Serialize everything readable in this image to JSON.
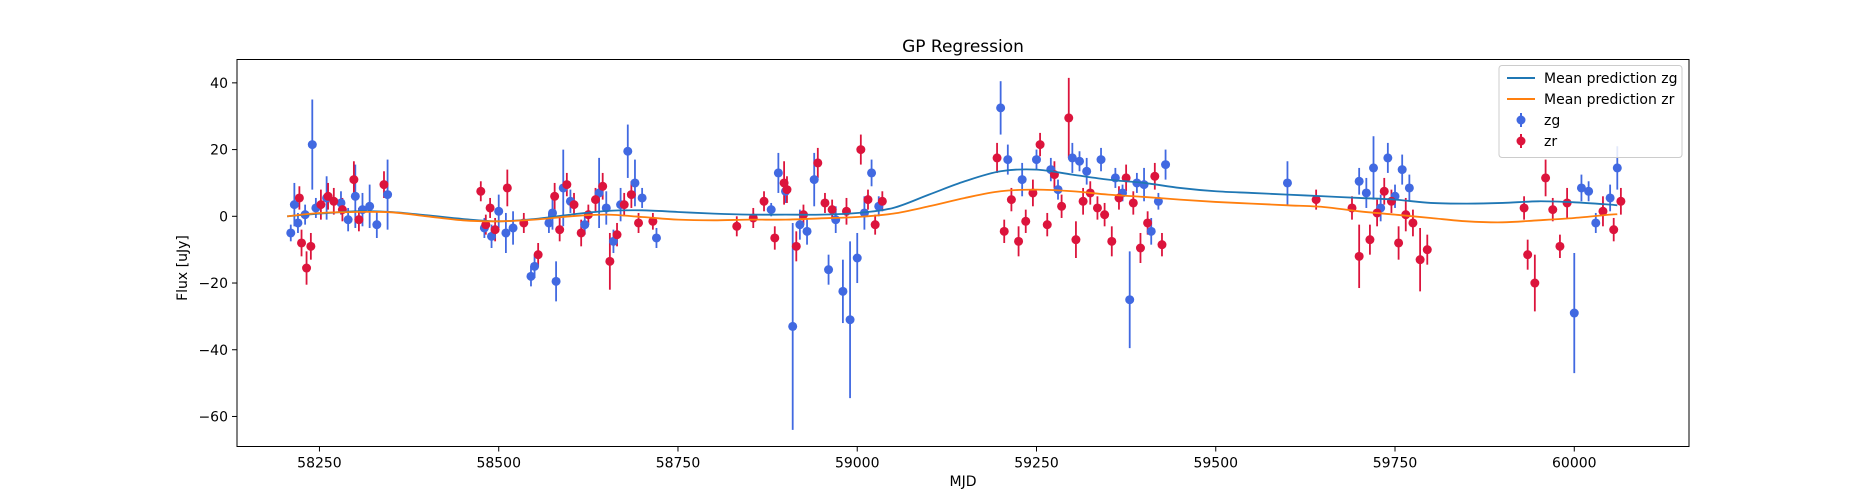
{
  "chart_data": {
    "type": "scatter",
    "title": "GP Regression",
    "xlabel": "MJD",
    "ylabel": "Flux [uJy]",
    "xlim": [
      58135,
      60160
    ],
    "ylim": [
      -69,
      47
    ],
    "xticks": [
      58250,
      58500,
      58750,
      59000,
      59250,
      59500,
      59750,
      60000
    ],
    "yticks": [
      40,
      20,
      0,
      -20,
      -40,
      -60
    ],
    "legend_position": "upper right",
    "grid": false,
    "colors": {
      "mean_zg": "#1f77b4",
      "mean_zr": "#ff7f0e",
      "zg": "#4169e1",
      "zr": "#dc143c"
    },
    "lines": [
      {
        "name": "Mean prediction zg",
        "color": "#1f77b4",
        "x": [
          58205,
          58250,
          58300,
          58350,
          58400,
          58450,
          58500,
          58550,
          58600,
          58650,
          58700,
          58750,
          58800,
          58850,
          58900,
          58950,
          59000,
          59050,
          59100,
          59150,
          59200,
          59250,
          59300,
          59350,
          59400,
          59450,
          59500,
          59550,
          59600,
          59650,
          59700,
          59750,
          59800,
          59850,
          59900,
          59950,
          60000,
          60050,
          60060
        ],
        "y": [
          0,
          0.8,
          1.5,
          1.3,
          0.3,
          -0.8,
          -1.5,
          -0.8,
          0.5,
          1.6,
          1.8,
          1.3,
          0.8,
          0.5,
          0.5,
          0.5,
          1.0,
          2.5,
          6.5,
          10.5,
          13.5,
          14.0,
          12.5,
          11.0,
          10.0,
          8.5,
          7.5,
          7.0,
          6.5,
          6.0,
          5.5,
          5.0,
          4.0,
          3.8,
          4.0,
          4.5,
          4.2,
          3.5,
          3.3
        ]
      },
      {
        "name": "Mean prediction zr",
        "color": "#ff7f0e",
        "x": [
          58205,
          58250,
          58300,
          58350,
          58400,
          58450,
          58500,
          58550,
          58600,
          58650,
          58700,
          58750,
          58800,
          58850,
          58900,
          58950,
          59000,
          59050,
          59100,
          59150,
          59200,
          59250,
          59300,
          59350,
          59400,
          59450,
          59500,
          59550,
          59600,
          59650,
          59700,
          59750,
          59800,
          59850,
          59900,
          59950,
          60000,
          60050,
          60060
        ],
        "y": [
          0,
          1.0,
          1.3,
          1.2,
          0.0,
          -1.2,
          -1.5,
          -1.0,
          0.0,
          0.5,
          -0.2,
          -1.0,
          -1.2,
          -1.0,
          -1.0,
          -0.6,
          -0.2,
          0.8,
          3.0,
          5.5,
          7.5,
          8.0,
          7.5,
          6.5,
          5.8,
          5.0,
          4.3,
          3.8,
          3.3,
          2.8,
          1.5,
          0.5,
          -0.5,
          -1.5,
          -1.8,
          -1.2,
          -0.5,
          0.5,
          0.6
        ]
      }
    ],
    "series": [
      {
        "name": "zg",
        "color": "#4169e1",
        "x": [
          58210,
          58215,
          58220,
          58230,
          58240,
          58245,
          58260,
          58280,
          58290,
          58300,
          58310,
          58320,
          58330,
          58345,
          58480,
          58490,
          58500,
          58510,
          58520,
          58545,
          58550,
          58570,
          58575,
          58580,
          58590,
          58600,
          58620,
          58640,
          58650,
          58660,
          58670,
          58680,
          58690,
          58700,
          58720,
          58880,
          58890,
          58900,
          58910,
          58920,
          58930,
          58940,
          58960,
          58970,
          58980,
          58990,
          59000,
          59010,
          59020,
          59030,
          59200,
          59210,
          59230,
          59250,
          59270,
          59280,
          59300,
          59310,
          59320,
          59340,
          59360,
          59370,
          59380,
          59390,
          59400,
          59410,
          59420,
          59430,
          59600,
          59700,
          59710,
          59720,
          59730,
          59740,
          59750,
          59760,
          59770,
          60000,
          60010,
          60020,
          60030,
          60050,
          60060
        ],
        "y": [
          -5,
          3.5,
          -2,
          0.5,
          21.5,
          2.5,
          5.5,
          4.0,
          -1.0,
          6.0,
          2.0,
          3.0,
          -2.5,
          6.5,
          -3.5,
          -6.0,
          1.5,
          -5.0,
          -3.5,
          -18.0,
          -15.0,
          -2.0,
          1.0,
          -19.5,
          8.5,
          4.5,
          -2.5,
          7.0,
          2.5,
          -7.5,
          3.5,
          19.5,
          10.0,
          5.5,
          -6.5,
          2.0,
          13.0,
          7.5,
          -33.0,
          -2.5,
          -4.5,
          11.0,
          -16.0,
          -1.0,
          -22.5,
          -31.0,
          -12.5,
          1.0,
          13.0,
          3.0,
          32.5,
          17.0,
          11.0,
          17.0,
          14.0,
          8.0,
          17.5,
          16.5,
          13.5,
          17.0,
          11.5,
          7.0,
          -25.0,
          10.0,
          9.5,
          -4.5,
          4.5,
          15.5,
          10.0,
          10.5,
          7.0,
          14.5,
          2.5,
          17.5,
          6.0,
          14.0,
          8.5,
          -29.0,
          8.5,
          7.5,
          -2.0,
          5.5,
          14.5
        ],
        "yerr": [
          2.5,
          6.5,
          3.0,
          3.0,
          13.5,
          3.0,
          6.5,
          3.5,
          3.5,
          9.5,
          5.0,
          6.5,
          4.0,
          10.5,
          3.0,
          3.5,
          5.0,
          6.0,
          5.0,
          3.0,
          3.5,
          3.0,
          5.0,
          6.0,
          11.5,
          3.5,
          3.0,
          10.5,
          5.0,
          3.5,
          5.0,
          8.0,
          7.0,
          3.0,
          3.0,
          2.0,
          6.0,
          3.5,
          31.0,
          4.5,
          4.0,
          8.0,
          4.5,
          4.0,
          9.5,
          23.5,
          7.5,
          5.0,
          4.0,
          3.0,
          8.0,
          4.5,
          5.0,
          3.0,
          3.5,
          3.0,
          4.5,
          3.0,
          4.0,
          3.5,
          3.0,
          2.5,
          14.5,
          3.0,
          5.0,
          4.0,
          2.5,
          4.5,
          6.5,
          4.0,
          4.5,
          9.5,
          4.0,
          4.5,
          3.5,
          4.5,
          4.0,
          18.0,
          4.0,
          3.0,
          3.0,
          4.0,
          6.5
        ]
      },
      {
        "name": "zr",
        "color": "#dc143c",
        "x": [
          58222,
          58225,
          58232,
          58238,
          58252,
          58262,
          58270,
          58282,
          58298,
          58305,
          58340,
          58475,
          58482,
          58488,
          58495,
          58512,
          58535,
          58555,
          58578,
          58585,
          58595,
          58605,
          58615,
          58625,
          58635,
          58645,
          58655,
          58665,
          58675,
          58685,
          58695,
          58715,
          58832,
          58855,
          58870,
          58885,
          58898,
          58902,
          58915,
          58925,
          58945,
          58955,
          58965,
          58985,
          59005,
          59015,
          59025,
          59035,
          59195,
          59205,
          59215,
          59225,
          59235,
          59245,
          59255,
          59265,
          59275,
          59285,
          59295,
          59305,
          59315,
          59325,
          59335,
          59345,
          59355,
          59365,
          59375,
          59385,
          59395,
          59405,
          59415,
          59425,
          59640,
          59690,
          59700,
          59715,
          59725,
          59735,
          59745,
          59755,
          59765,
          59775,
          59785,
          59795,
          59930,
          59935,
          59945,
          59960,
          59970,
          59980,
          59990,
          60040,
          60055,
          60065
        ],
        "y": [
          5.5,
          -8.0,
          -15.5,
          -9.0,
          3.5,
          6.0,
          4.5,
          2.0,
          11.0,
          -1.0,
          9.5,
          7.5,
          -2.5,
          2.5,
          -4.0,
          8.5,
          -2.0,
          -11.5,
          6.0,
          -4.0,
          9.5,
          3.5,
          -5.0,
          0.5,
          5.0,
          9.0,
          -13.5,
          -5.5,
          3.5,
          6.5,
          -2.0,
          -1.5,
          -3.0,
          -0.5,
          4.5,
          -6.5,
          10.0,
          8.0,
          -9.0,
          0.5,
          16.0,
          4.0,
          2.0,
          1.5,
          20.0,
          5.0,
          -2.5,
          4.5,
          17.5,
          -4.5,
          5.0,
          -7.5,
          -1.5,
          7.0,
          21.5,
          -2.5,
          12.5,
          3.0,
          29.5,
          -7.0,
          4.5,
          7.0,
          2.5,
          0.5,
          -7.5,
          5.5,
          11.5,
          4.0,
          -9.5,
          -2.0,
          12.0,
          -8.5,
          5.0,
          2.5,
          -12.0,
          -7.0,
          1.0,
          7.5,
          4.5,
          -8.0,
          0.5,
          -2.0,
          -13.0,
          -10.0,
          2.5,
          -11.5,
          -20.0,
          11.5,
          2.0,
          -9.0,
          4.0,
          1.5,
          -4.0,
          4.5
        ],
        "yerr": [
          3.5,
          4.0,
          5.0,
          4.0,
          4.5,
          4.0,
          4.0,
          3.5,
          5.5,
          3.5,
          4.0,
          3.0,
          3.0,
          3.0,
          3.5,
          5.5,
          3.0,
          3.5,
          4.0,
          3.5,
          3.5,
          3.5,
          4.0,
          3.0,
          3.5,
          4.0,
          8.5,
          3.5,
          3.5,
          4.0,
          3.0,
          2.5,
          3.0,
          3.0,
          3.0,
          3.5,
          6.5,
          4.0,
          4.5,
          3.0,
          4.5,
          3.0,
          3.0,
          4.0,
          4.5,
          3.0,
          3.0,
          3.0,
          4.5,
          3.5,
          3.5,
          4.5,
          3.5,
          4.0,
          3.5,
          3.5,
          4.0,
          3.5,
          12.0,
          5.5,
          4.0,
          3.5,
          3.5,
          3.5,
          4.5,
          3.5,
          4.0,
          3.5,
          4.5,
          3.5,
          4.0,
          3.5,
          3.0,
          3.5,
          9.5,
          4.5,
          4.0,
          4.0,
          3.5,
          5.0,
          5.0,
          4.0,
          9.5,
          4.5,
          3.5,
          4.5,
          8.5,
          5.5,
          3.5,
          3.5,
          4.5,
          4.5,
          3.5,
          4.0
        ]
      }
    ]
  }
}
